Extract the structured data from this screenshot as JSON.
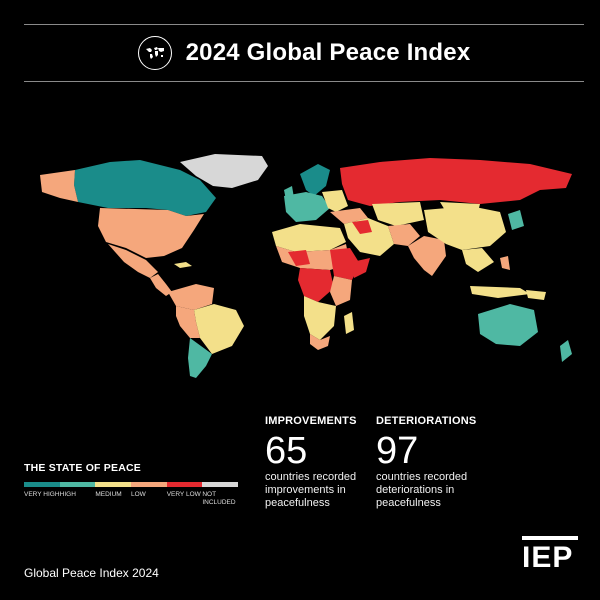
{
  "header": {
    "title": "2024 Global Peace Index",
    "icon": "globe-icon"
  },
  "colors": {
    "very_high": "#1a8c8a",
    "high": "#4fb8a3",
    "medium": "#f3e08a",
    "low": "#f5a77c",
    "very_low": "#e42a30",
    "not_included": "#d7d7d7",
    "background": "#000000"
  },
  "stats": {
    "improvements": {
      "label": "IMPROVEMENTS",
      "value": "65",
      "desc": "countries recorded improvements in peacefulness"
    },
    "deteriorations": {
      "label": "DETERIORATIONS",
      "value": "97",
      "desc": "countries recorded deteriorations in peacefulness"
    }
  },
  "legend": {
    "title": "THE STATE OF PEACE",
    "items": [
      {
        "label": "VERY HIGH",
        "color": "#1a8c8a"
      },
      {
        "label": "HIGH",
        "color": "#4fb8a3"
      },
      {
        "label": "MEDIUM",
        "color": "#f3e08a"
      },
      {
        "label": "LOW",
        "color": "#f5a77c"
      },
      {
        "label": "VERY LOW",
        "color": "#e42a30"
      },
      {
        "label": "NOT INCLUDED",
        "color": "#d7d7d7"
      }
    ]
  },
  "footer": {
    "text_bold": "Global Peace Index",
    "text_year": "2024",
    "logo": "IEP"
  }
}
